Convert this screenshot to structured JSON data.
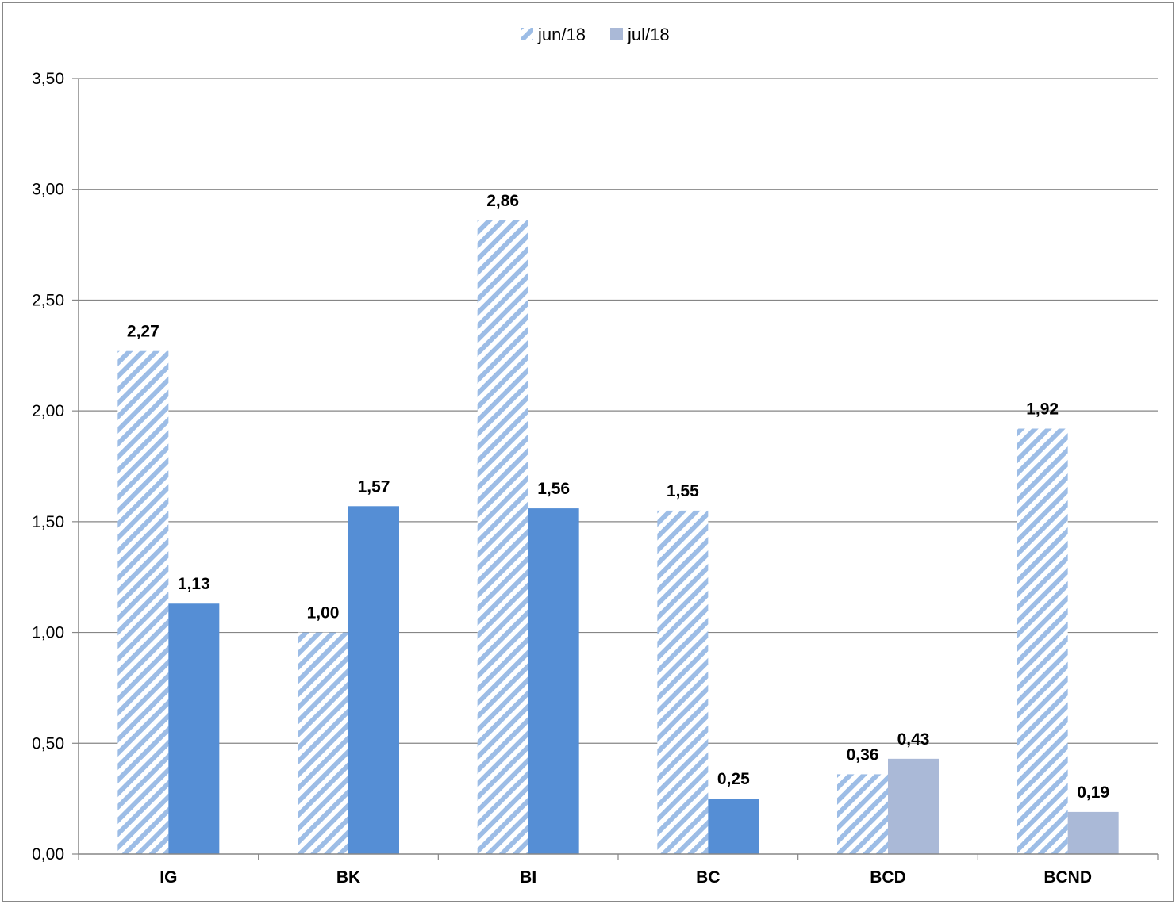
{
  "chart_data": {
    "type": "bar",
    "categories": [
      "IG",
      "BK",
      "BI",
      "BC",
      "BCD",
      "BCND"
    ],
    "series": [
      {
        "name": "jun/18",
        "values": [
          2.27,
          1.0,
          2.86,
          1.55,
          0.36,
          1.92
        ]
      },
      {
        "name": "jul/18",
        "values": [
          1.13,
          1.57,
          1.56,
          0.25,
          0.43,
          0.19
        ]
      }
    ],
    "value_labels": [
      [
        "2,27",
        "1,00",
        "2,86",
        "1,55",
        "0,36",
        "1,92"
      ],
      [
        "1,13",
        "1,57",
        "1,56",
        "0,25",
        "0,43",
        "0,19"
      ]
    ],
    "y_ticks": [
      0,
      0.5,
      1.0,
      1.5,
      2.0,
      2.5,
      3.0,
      3.5
    ],
    "y_tick_labels": [
      "0,00",
      "0,50",
      "1,00",
      "1,50",
      "2,00",
      "2,50",
      "3,00",
      "3,50"
    ],
    "ylim": [
      0,
      3.5
    ],
    "title": "",
    "xlabel": "",
    "ylabel": "",
    "grid": true,
    "legend_position": "top-center",
    "colors": {
      "jun_stripe": "#9dbde6",
      "jul_bar": "#558ed5",
      "jul_bar_light": "#aab9d7",
      "grid": "#868686",
      "axis": "#868686"
    },
    "jul_light_categories": [
      "BCD",
      "BCND"
    ]
  }
}
